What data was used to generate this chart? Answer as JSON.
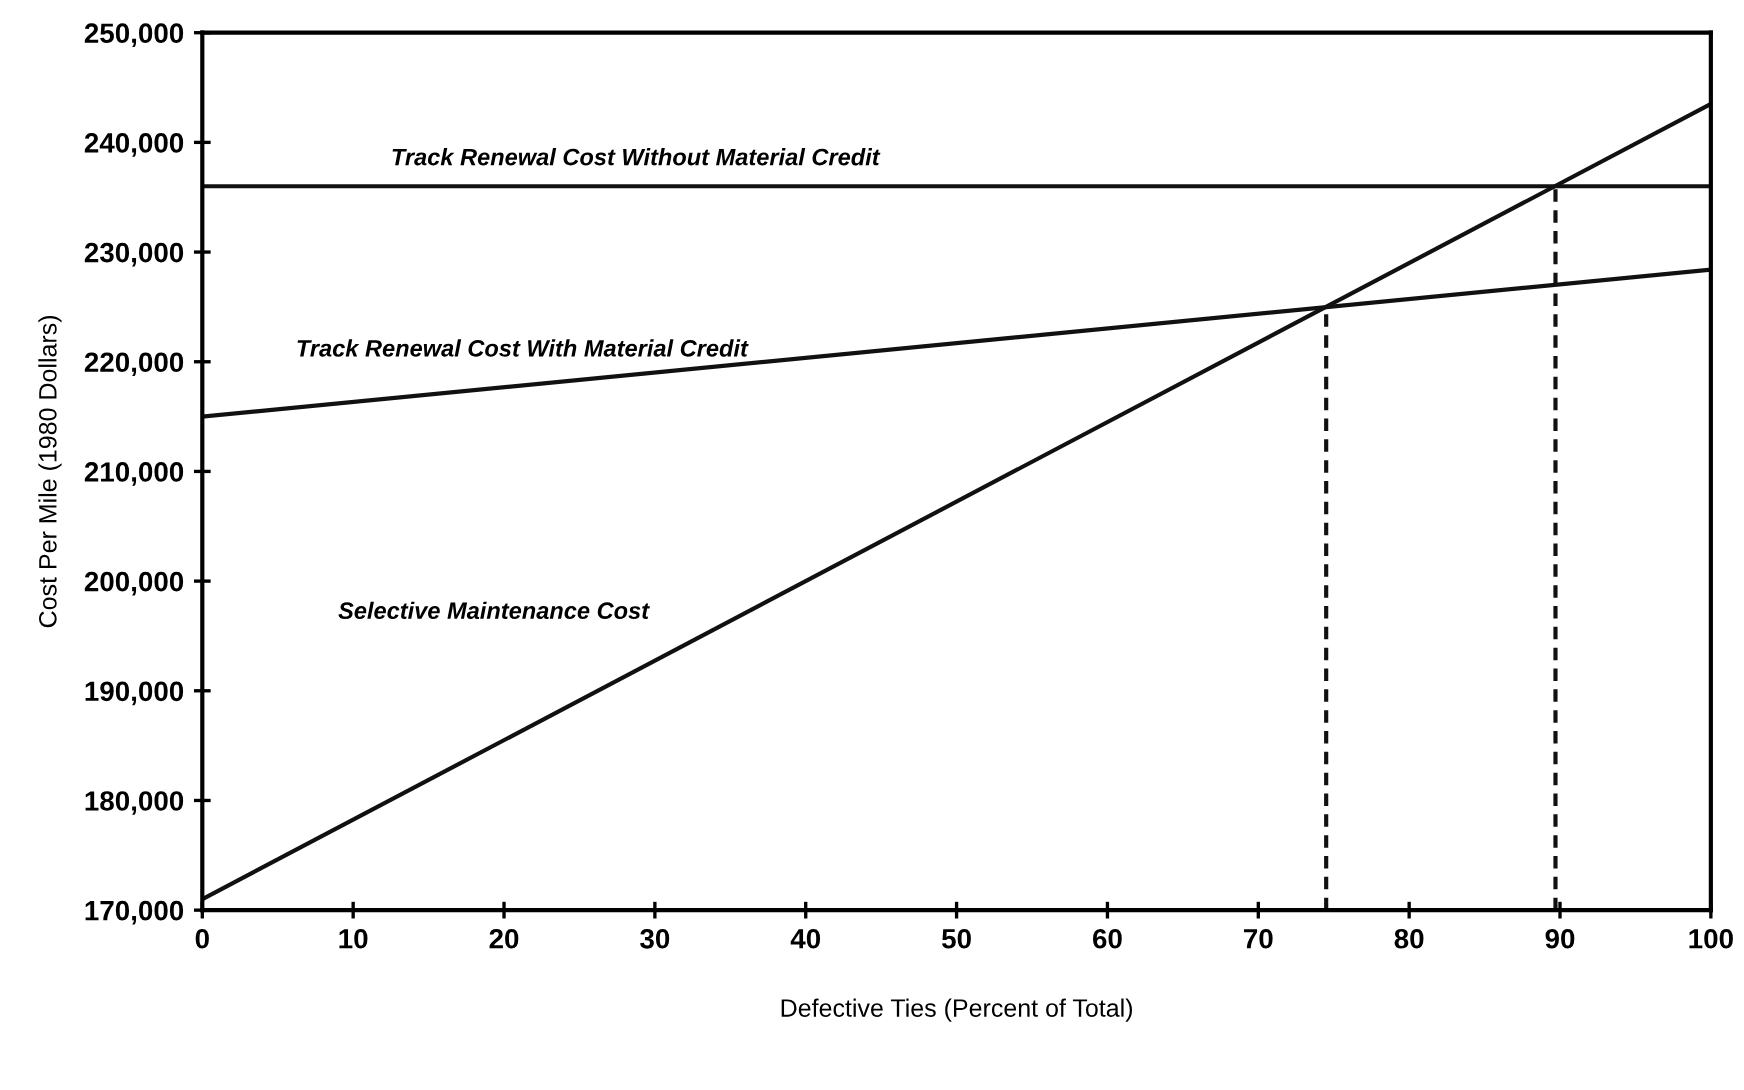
{
  "chart_data": {
    "type": "line",
    "xlabel": "Defective Ties (Percent of Total)",
    "ylabel": "Cost Per Mile (1980 Dollars)",
    "xlim": [
      0,
      100
    ],
    "xticks": [
      0,
      10,
      20,
      30,
      40,
      50,
      60,
      70,
      80,
      90,
      100
    ],
    "ylim": [
      170000,
      250000
    ],
    "yticks": [
      {
        "value": 170000,
        "label": "170,000"
      },
      {
        "value": 180000,
        "label": "180,000"
      },
      {
        "value": 190000,
        "label": "190,000"
      },
      {
        "value": 200000,
        "label": "200,000"
      },
      {
        "value": 210000,
        "label": "210,000"
      },
      {
        "value": 220000,
        "label": "220,000"
      },
      {
        "value": 230000,
        "label": "230,000"
      },
      {
        "value": 240000,
        "label": "240,000"
      },
      {
        "value": 250000,
        "label": "250,000"
      }
    ],
    "grid": false,
    "legend": false,
    "series": [
      {
        "color": "#111111",
        "x": [
          0,
          100
        ],
        "values": [
          236000,
          236000
        ],
        "line_style": "solid"
      },
      {
        "color": "#111111",
        "x": [
          0,
          100
        ],
        "values": [
          215000,
          228400
        ],
        "line_style": "solid"
      },
      {
        "color": "#111111",
        "x": [
          0,
          100
        ],
        "values": [
          171000,
          243500
        ],
        "line_style": "solid"
      },
      {
        "color": "#111111",
        "x": [
          74.5,
          74.5
        ],
        "values": [
          170000,
          225000
        ],
        "line_style": "dashed"
      },
      {
        "color": "#111111",
        "x": [
          89.7,
          89.7
        ],
        "values": [
          170000,
          236000
        ],
        "line_style": "dashed"
      }
    ],
    "annotations": [
      "Track Renewal Cost Without Material Credit",
      "Track Renewal Cost With Material Credit",
      "Selective Maintenance Cost"
    ]
  }
}
